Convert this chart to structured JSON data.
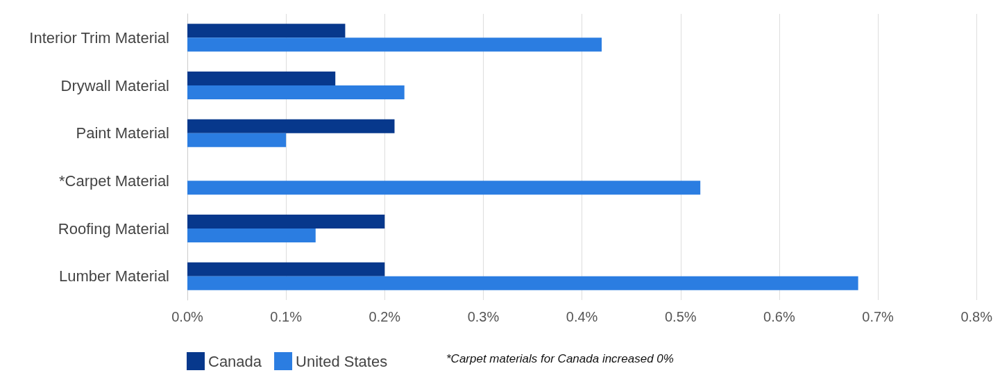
{
  "chart_data": {
    "type": "bar",
    "orientation": "horizontal",
    "categories": [
      "Interior Trim Material",
      "Drywall Material",
      "Paint Material",
      "*Carpet Material",
      "Roofing Material",
      "Lumber Material"
    ],
    "series": [
      {
        "name": "Canada",
        "color": "#07388c",
        "values": [
          0.16,
          0.15,
          0.21,
          0,
          0.2,
          0.2
        ]
      },
      {
        "name": "United States",
        "color": "#2b7de1",
        "values": [
          0.42,
          0.22,
          0.1,
          0.52,
          0.13,
          0.68
        ]
      }
    ],
    "xlim": [
      0,
      0.8
    ],
    "xticks": [
      {
        "value": 0,
        "label": "0.0%"
      },
      {
        "value": 0.1,
        "label": "0.1%"
      },
      {
        "value": 0.2,
        "label": "0.2%"
      },
      {
        "value": 0.3,
        "label": "0.3%"
      },
      {
        "value": 0.4,
        "label": "0.4%"
      },
      {
        "value": 0.5,
        "label": "0.5%"
      },
      {
        "value": 0.6,
        "label": "0.6%"
      },
      {
        "value": 0.7,
        "label": "0.7%"
      },
      {
        "value": 0.8,
        "label": "0.8%"
      }
    ],
    "grid": "x",
    "legend": "bottom left",
    "annotations": [
      "*Carpet materials for Canada increased 0%"
    ]
  }
}
